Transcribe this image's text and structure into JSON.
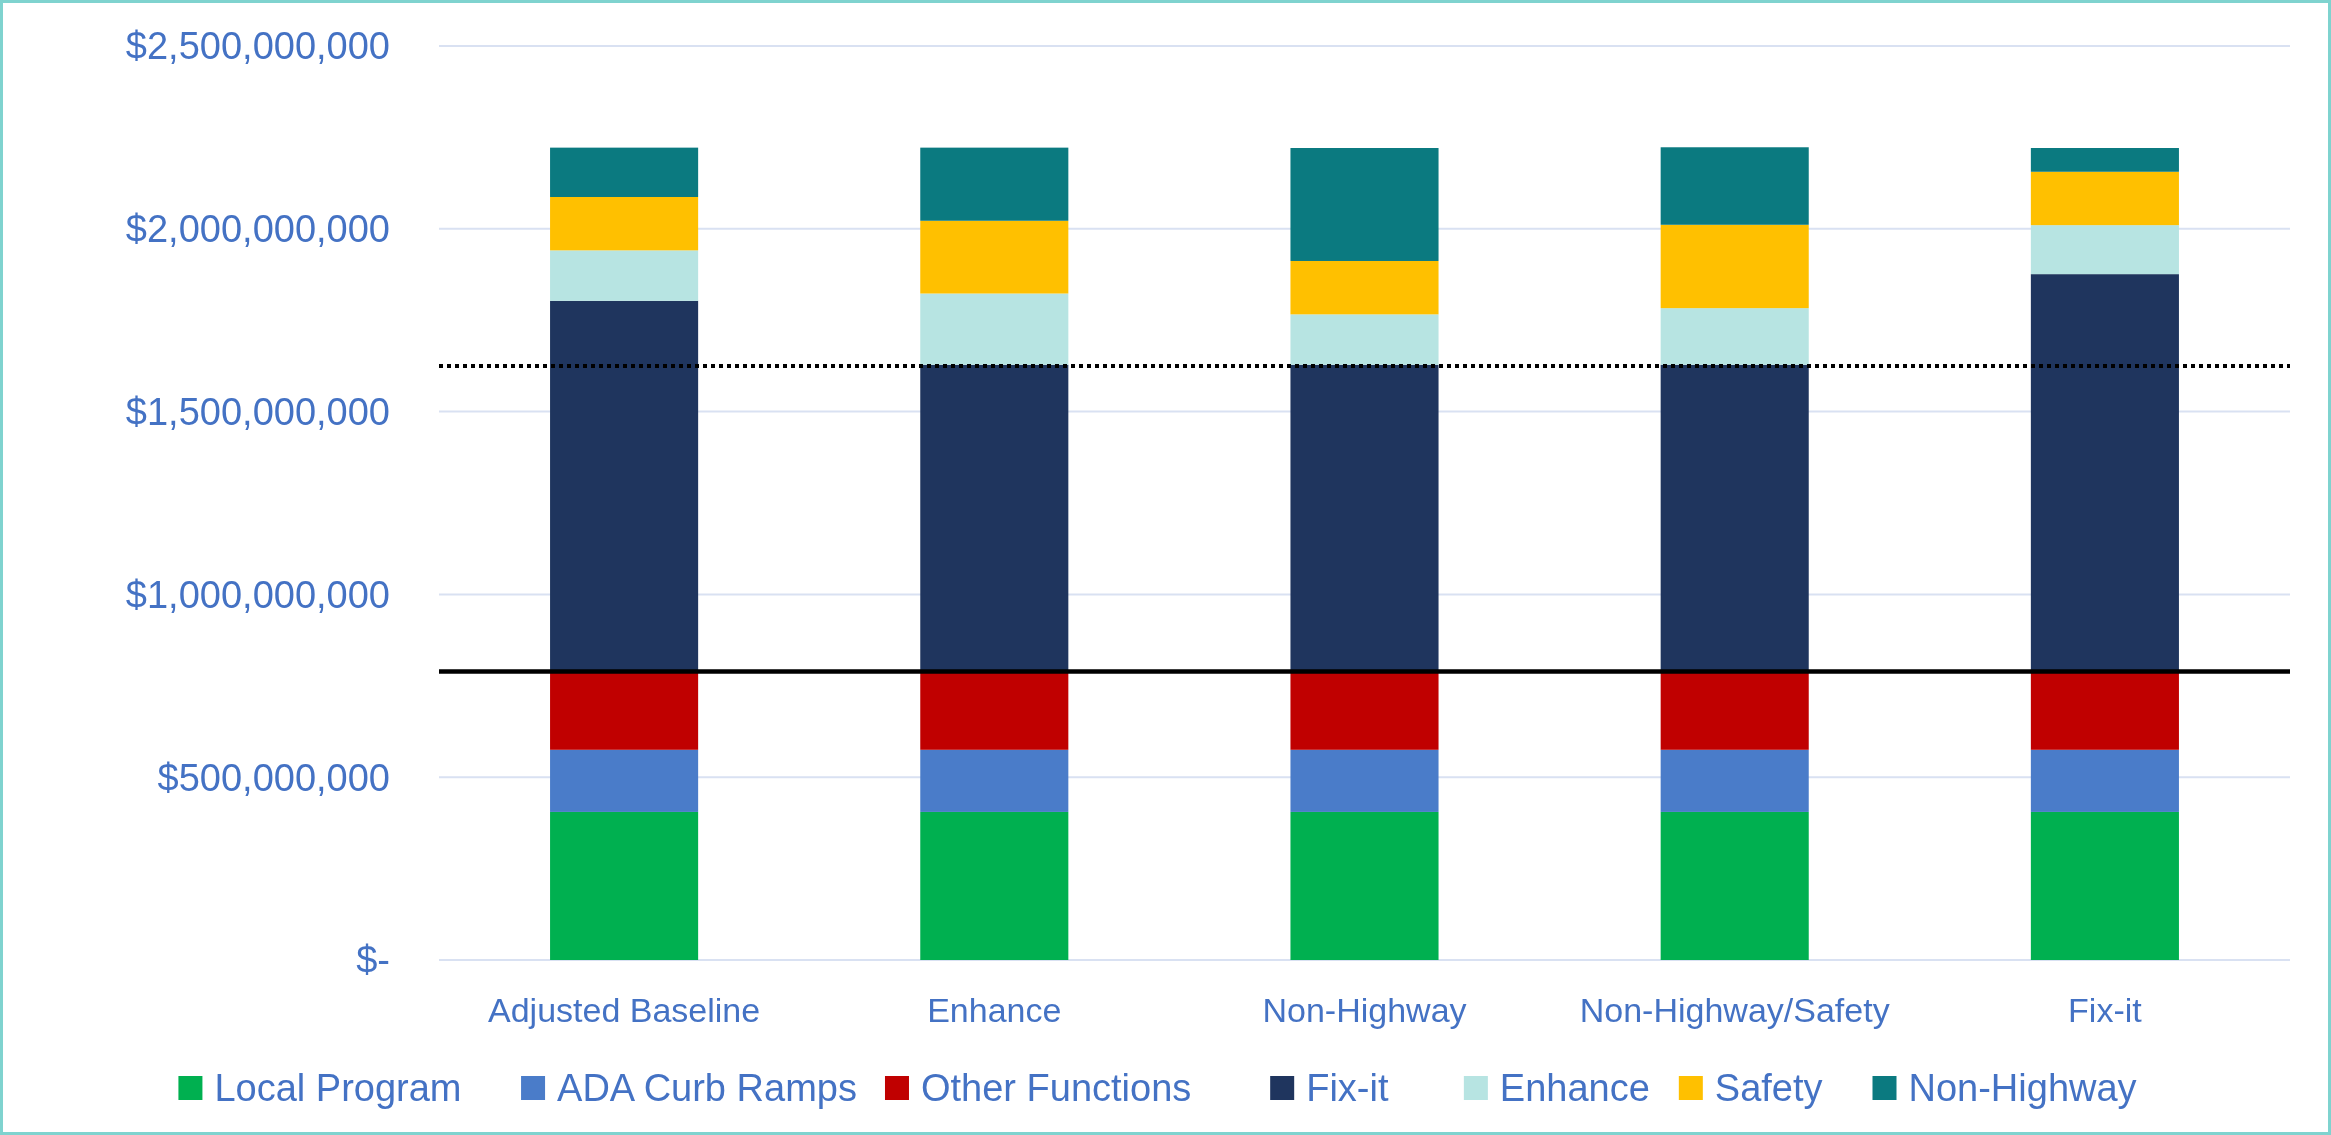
{
  "chart_data": {
    "type": "bar",
    "stacked": true,
    "categories": [
      "Adjusted Baseline",
      "Enhance",
      "Non-Highway",
      "Non-Highway/Safety",
      "Fix-it"
    ],
    "series": [
      {
        "name": "Local Program",
        "color": "#00b050",
        "values": [
          405000000,
          405000000,
          405000000,
          405000000,
          405000000
        ]
      },
      {
        "name": "ADA Curb Ramps",
        "color": "#4a7cc9",
        "values": [
          170000000,
          170000000,
          170000000,
          170000000,
          170000000
        ]
      },
      {
        "name": "Other Functions",
        "color": "#c00000",
        "values": [
          212000000,
          212000000,
          212000000,
          212000000,
          212000000
        ]
      },
      {
        "name": "Fix-it",
        "color": "#1f355e",
        "values": [
          1016000000,
          841000000,
          841000000,
          841000000,
          1089000000
        ]
      },
      {
        "name": "Enhance",
        "color": "#b7e4e2",
        "values": [
          138000000,
          195000000,
          138000000,
          155000000,
          134000000
        ]
      },
      {
        "name": "Safety",
        "color": "#ffc000",
        "values": [
          146000000,
          199000000,
          146000000,
          228000000,
          146000000
        ]
      },
      {
        "name": "Non-Highway",
        "color": "#0b7a80",
        "values": [
          135000000,
          200000000,
          309000000,
          212000000,
          65000000
        ]
      }
    ],
    "ylim": [
      0,
      2500000000
    ],
    "yticks": [
      {
        "value": 0,
        "label": "$-"
      },
      {
        "value": 500000000,
        "label": "$500,000,000"
      },
      {
        "value": 1000000000,
        "label": "$1,000,000,000"
      },
      {
        "value": 1500000000,
        "label": "$1,500,000,000"
      },
      {
        "value": 2000000000,
        "label": "$2,000,000,000"
      },
      {
        "value": 2500000000,
        "label": "$2,500,000,000"
      }
    ],
    "grid": "y",
    "legend": "bottom",
    "ref_lines": [
      {
        "axis": "y",
        "value": 789000000,
        "color": "#000000",
        "line_style": "solid"
      },
      {
        "axis": "y",
        "value": 1625000000,
        "color": "#000000",
        "line_style": "dotted"
      }
    ]
  }
}
